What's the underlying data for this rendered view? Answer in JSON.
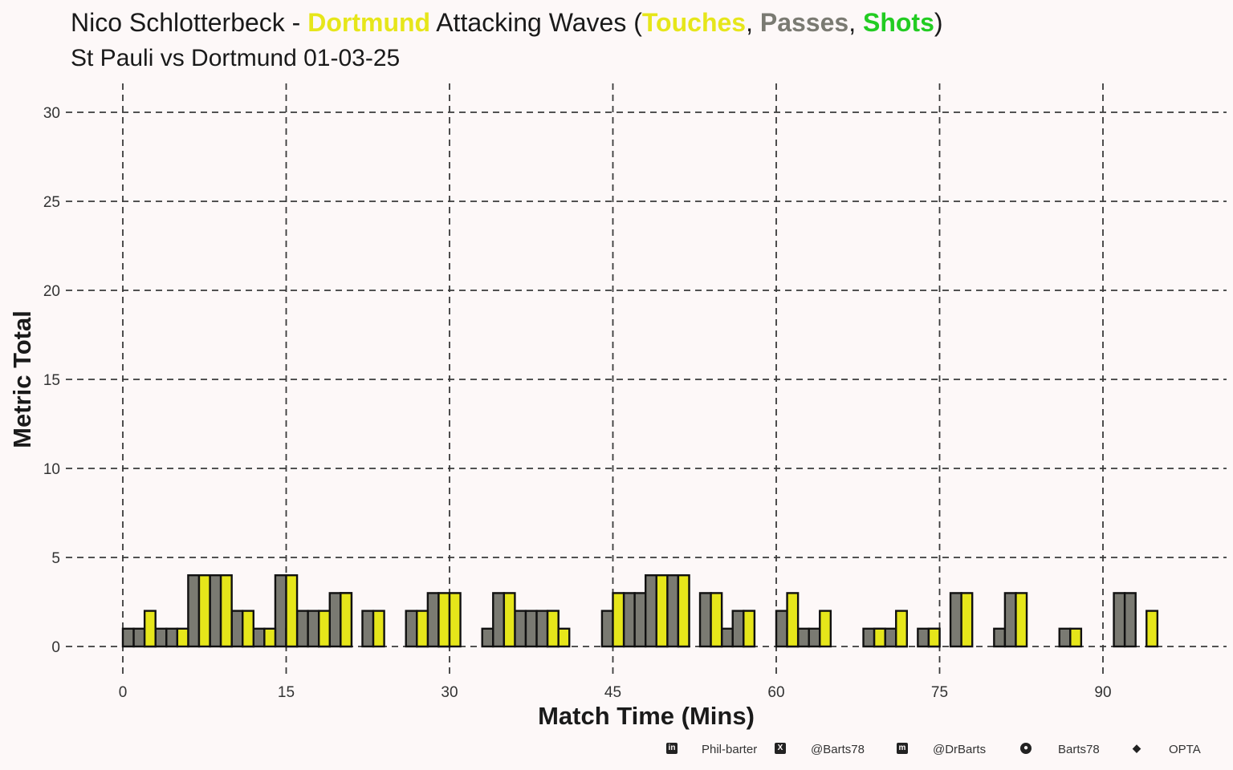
{
  "title": {
    "player": "Nico Schlotterbeck - ",
    "team": "Dortmund",
    "middle": " Attacking Waves (",
    "touches": "Touches",
    "sep1": ", ",
    "passes": "Passes",
    "sep2": ", ",
    "shots": "Shots",
    "end": ")"
  },
  "subtitle": "St Pauli vs Dortmund 01-03-25",
  "colors": {
    "team": "#e6e61a",
    "touches": "#e6e61a",
    "passes": "#7a7a72",
    "shots": "#22cc22",
    "background": "#fdf8f8",
    "grid": "#3a3a3a"
  },
  "footer": {
    "linkedin": "Phil-barter",
    "twitter": "@Barts78",
    "mastodon": "@DrBarts",
    "github": "Barts78",
    "source": "OPTA"
  },
  "chart_data": {
    "type": "bar",
    "xlabel": "Match Time (Mins)",
    "ylabel": "Metric Total",
    "xlim": [
      -3.5,
      100
    ],
    "ylim": [
      0,
      31.5
    ],
    "x_ticks": [
      0,
      15,
      30,
      45,
      60,
      75,
      90
    ],
    "y_ticks": [
      0,
      5,
      10,
      15,
      20,
      25,
      30
    ],
    "grid": true,
    "bin_width_mins": 1,
    "series": [
      {
        "name": "Passes",
        "x": [
          0,
          1,
          2,
          3,
          4,
          6,
          8,
          9,
          10,
          11,
          12,
          14,
          15,
          16,
          17,
          18,
          19,
          20,
          22,
          26,
          27,
          28,
          29,
          33,
          34,
          36,
          37,
          38,
          39,
          44,
          46,
          47,
          48,
          49,
          50,
          51,
          53,
          54,
          55,
          56,
          57,
          60,
          61,
          62,
          63,
          68,
          69,
          70,
          71,
          73,
          74,
          76,
          80,
          81,
          86,
          91,
          92
        ],
        "values": [
          1,
          1,
          1,
          1,
          1,
          4,
          4,
          2,
          2,
          1,
          1,
          4,
          1,
          2,
          2,
          1,
          3,
          3,
          2,
          2,
          1,
          3,
          2,
          1,
          3,
          2,
          2,
          2,
          2,
          2,
          3,
          3,
          4,
          3,
          4,
          4,
          3,
          2,
          1,
          2,
          2,
          2,
          1,
          1,
          1,
          1,
          1,
          1,
          1,
          1,
          1,
          3,
          1,
          3,
          1,
          3,
          3
        ]
      },
      {
        "name": "Touches",
        "x": [
          2,
          5,
          7,
          9,
          11,
          13,
          15,
          18,
          20,
          23,
          27,
          29,
          30,
          35,
          39,
          40,
          45,
          49,
          51,
          54,
          57,
          61,
          64,
          69,
          71,
          74,
          77,
          82,
          87,
          94
        ],
        "values": [
          2,
          1,
          4,
          4,
          2,
          1,
          4,
          2,
          3,
          2,
          2,
          3,
          3,
          3,
          2,
          1,
          3,
          4,
          4,
          3,
          2,
          3,
          2,
          1,
          2,
          1,
          3,
          3,
          1,
          2
        ]
      }
    ]
  }
}
